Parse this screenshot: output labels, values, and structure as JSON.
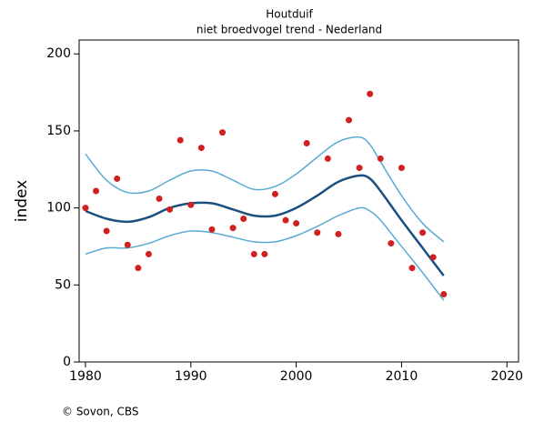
{
  "chart_data": {
    "type": "scatter",
    "title": "Houtduif",
    "subtitle": "niet broedvogel trend - Nederland",
    "ylabel": "index",
    "source": "© Sovon, CBS",
    "xlim": [
      1979.4,
      2021.1
    ],
    "xticks": [
      1980,
      1990,
      2000,
      2010,
      2020
    ],
    "ylim": [
      0,
      209
    ],
    "yticks": [
      0,
      50,
      100,
      150,
      200
    ],
    "series": [
      {
        "kind": "line",
        "color": "#5aaad4",
        "width": 1.5,
        "x": [
          1980,
          1982,
          1984,
          1986,
          1988,
          1990,
          1992,
          1994,
          1996,
          1998,
          2000,
          2002,
          2004,
          2006,
          2007,
          2008,
          2010,
          2012,
          2014
        ],
        "values": [
          135,
          118,
          110,
          111,
          118,
          124,
          124,
          118,
          112,
          114,
          122,
          133,
          143,
          146,
          141,
          130,
          108,
          90,
          78
        ]
      },
      {
        "kind": "line",
        "color": "#5aaad4",
        "width": 1.5,
        "x": [
          1980,
          1982,
          1984,
          1986,
          1988,
          1990,
          1992,
          1994,
          1996,
          1998,
          2000,
          2002,
          2004,
          2006,
          2007,
          2008,
          2010,
          2012,
          2014
        ],
        "values": [
          70,
          74,
          74,
          77,
          82,
          85,
          84,
          81,
          78,
          78,
          82,
          88,
          95,
          100,
          98,
          92,
          75,
          58,
          40
        ]
      },
      {
        "kind": "line",
        "color": "#1b4f80",
        "width": 2.5,
        "x": [
          1980,
          1982,
          1984,
          1986,
          1988,
          1990,
          1992,
          1994,
          1996,
          1998,
          2000,
          2002,
          2004,
          2006,
          2007,
          2008,
          2010,
          2012,
          2014
        ],
        "values": [
          98,
          93,
          91,
          94,
          100,
          103,
          103,
          99,
          95,
          95,
          100,
          108,
          117,
          121,
          119,
          111,
          92,
          74,
          56
        ]
      },
      {
        "kind": "points",
        "color": "#d02020",
        "x": [
          1980,
          1981,
          1982,
          1983,
          1984,
          1985,
          1986,
          1987,
          1988,
          1989,
          1990,
          1991,
          1992,
          1993,
          1994,
          1995,
          1996,
          1997,
          1998,
          1999,
          2000,
          2001,
          2002,
          2003,
          2004,
          2005,
          2006,
          2007,
          2008,
          2009,
          2010,
          2011,
          2012,
          2013,
          2014
        ],
        "values": [
          100,
          111,
          85,
          119,
          76,
          61,
          70,
          106,
          99,
          144,
          102,
          139,
          86,
          149,
          87,
          93,
          70,
          70,
          109,
          92,
          90,
          142,
          84,
          132,
          83,
          157,
          126,
          174,
          132,
          77,
          126,
          61,
          84,
          68,
          44
        ]
      }
    ]
  }
}
